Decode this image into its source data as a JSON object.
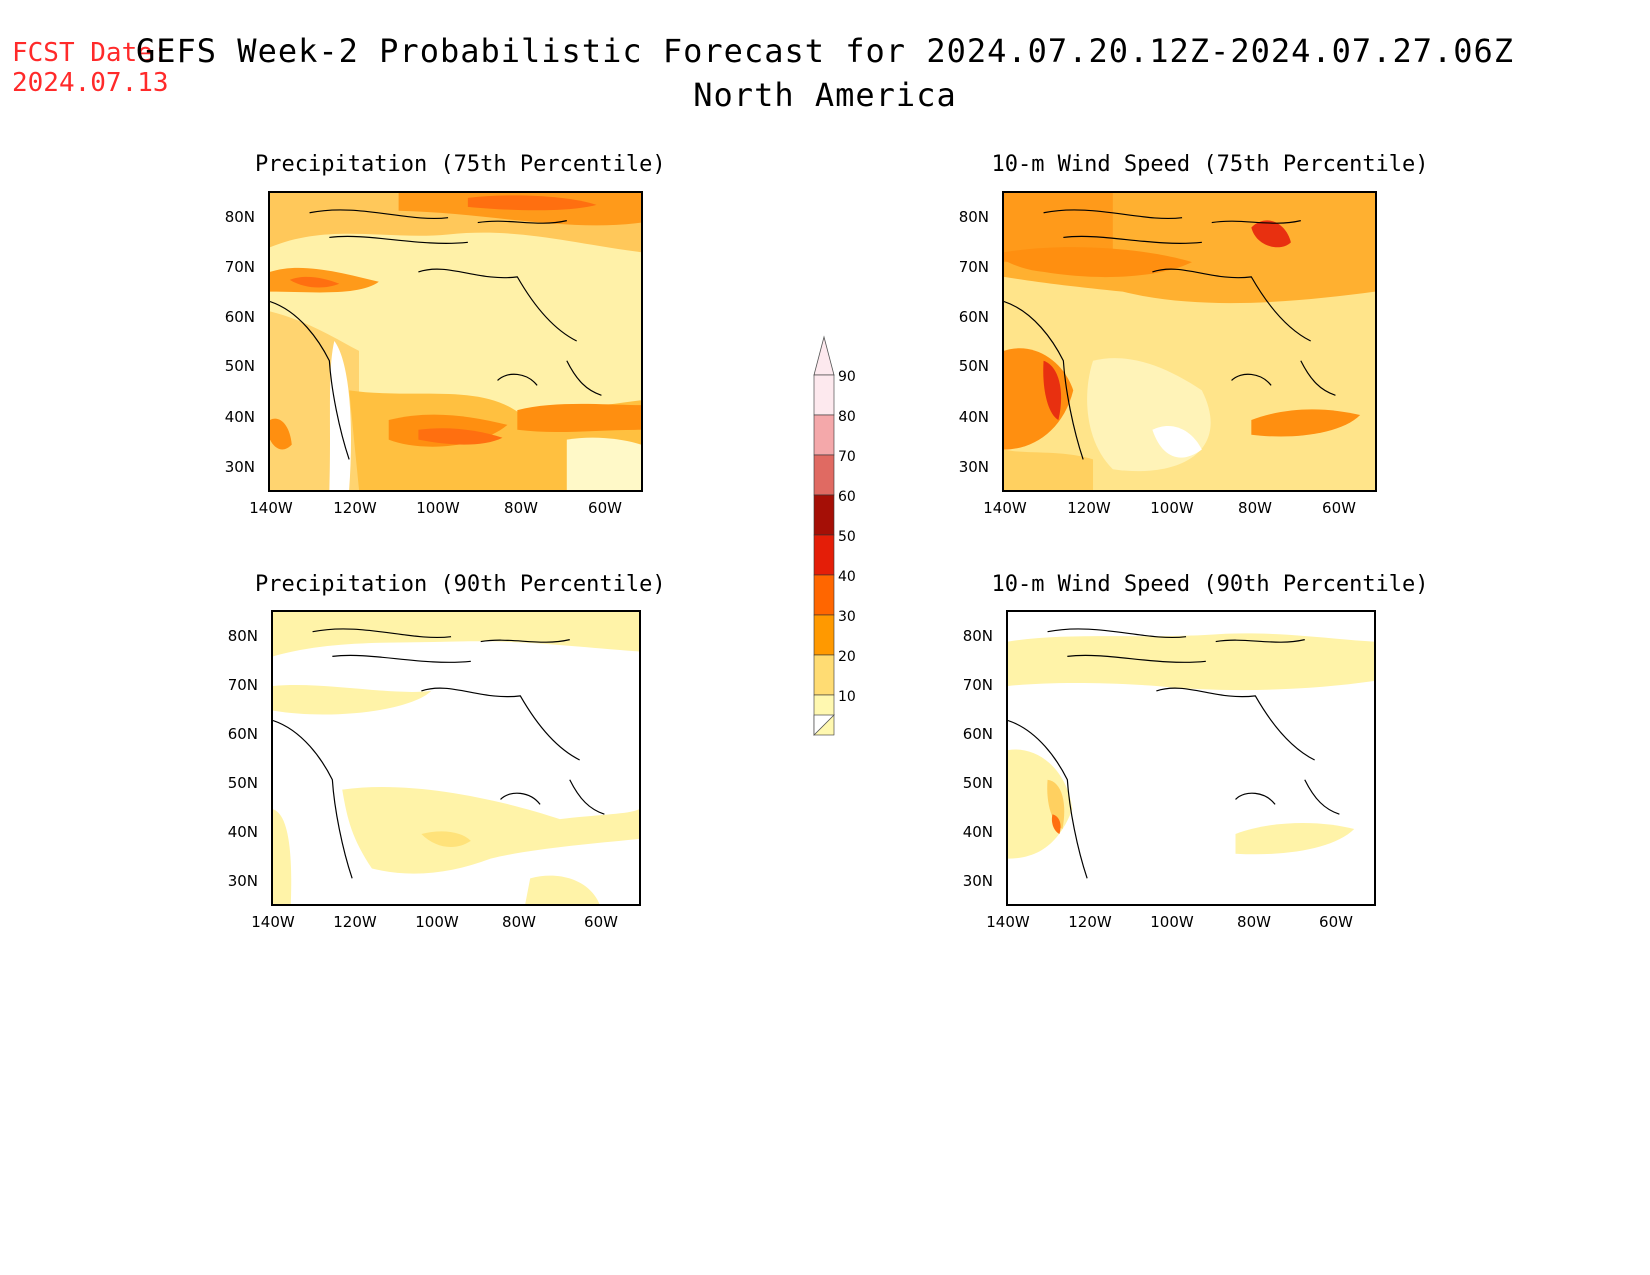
{
  "header": {
    "fcst_label": "FCST Date:",
    "fcst_date": "2024.07.13",
    "title": "GEFS Week-2 Probabilistic Forecast for 2024.07.20.12Z-2024.07.27.06Z",
    "subtitle": "North America"
  },
  "panels": [
    {
      "title": "Precipitation (75th Percentile)"
    },
    {
      "title": "10-m Wind Speed (75th Percentile)"
    },
    {
      "title": "Precipitation (90th Percentile)"
    },
    {
      "title": "10-m Wind Speed (90th Percentile)"
    }
  ],
  "axes": {
    "lat_labels": [
      "80N",
      "70N",
      "60N",
      "50N",
      "40N",
      "30N"
    ],
    "lon_labels": [
      "140W",
      "120W",
      "100W",
      "80W",
      "60W"
    ]
  },
  "colorbar": {
    "labels": [
      "90",
      "80",
      "70",
      "60",
      "50",
      "40",
      "30",
      "20",
      "10"
    ],
    "colors": [
      "#fde9ee",
      "#f4a8aa",
      "#e06a62",
      "#a50f06",
      "#e41e08",
      "#ff6600",
      "#ff9900",
      "#ffdc73",
      "#fff8b0"
    ]
  }
}
